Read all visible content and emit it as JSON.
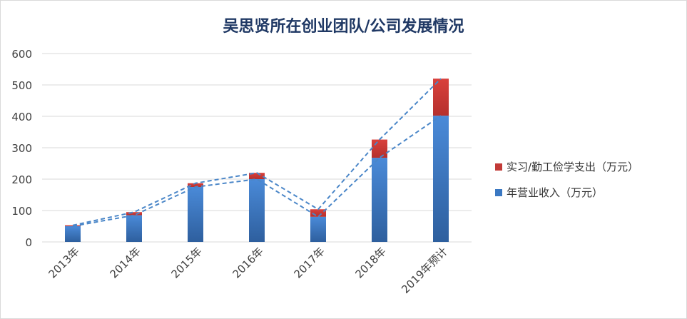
{
  "chart_data": {
    "type": "bar",
    "title": "吴思贤所在创业团队/公司发展情况",
    "categories": [
      "2013年",
      "2014年",
      "2015年",
      "2016年",
      "2017年",
      "2018年",
      "2019年预计"
    ],
    "series": [
      {
        "name": "年营业收入（万元）",
        "values": [
          50,
          85,
          175,
          200,
          80,
          268,
          402
        ],
        "color": "#3a78c2"
      },
      {
        "name": "实习/勤工俭学支出（万元）",
        "values": [
          3,
          10,
          12,
          20,
          24,
          58,
          118
        ],
        "color": "#c23a37"
      }
    ],
    "stacked": true,
    "ylim": [
      0,
      600
    ],
    "yticks": [
      0,
      100,
      200,
      300,
      400,
      500,
      600
    ],
    "grid": true,
    "legend_position": "right",
    "trend_lines": "dashed"
  }
}
